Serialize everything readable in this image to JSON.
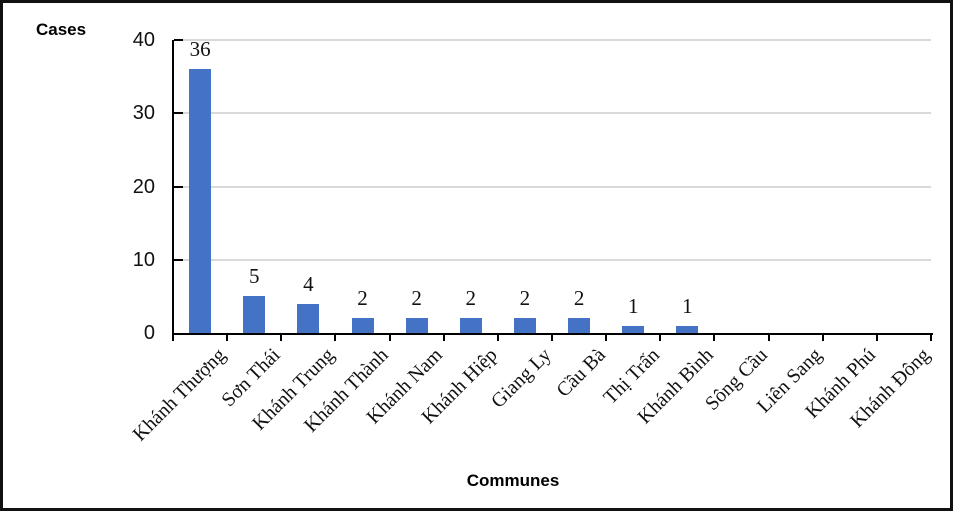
{
  "chart_data": {
    "type": "bar",
    "title": "",
    "ylabel": "Cases",
    "xlabel": "Communes",
    "categories": [
      "Khánh Thượng",
      "Sơn Thái",
      "Khánh Trung",
      "Khánh Thành",
      "Khánh Nam",
      "Khánh Hiệp",
      "Giang Ly",
      "Cầu Bà",
      "Thị Trấn",
      "Khánh Bình",
      "Sông Cầu",
      "Liên Sang",
      "Khánh Phú",
      "Khánh Đông"
    ],
    "values": [
      36,
      5,
      4,
      2,
      2,
      2,
      2,
      2,
      1,
      1,
      0,
      0,
      0,
      0
    ],
    "data_labels": [
      "36",
      "5",
      "4",
      "2",
      "2",
      "2",
      "2",
      "2",
      "1",
      "1",
      "",
      "",
      "",
      ""
    ],
    "ylim": [
      0,
      40
    ],
    "yticks": [
      0,
      10,
      20,
      30,
      40
    ],
    "grid": "horizontal",
    "legend_position": "none",
    "bar_color": "#4472C4",
    "gridline_color": "#D9D9D9",
    "axis_color": "#000000",
    "text_color": "#111111"
  }
}
